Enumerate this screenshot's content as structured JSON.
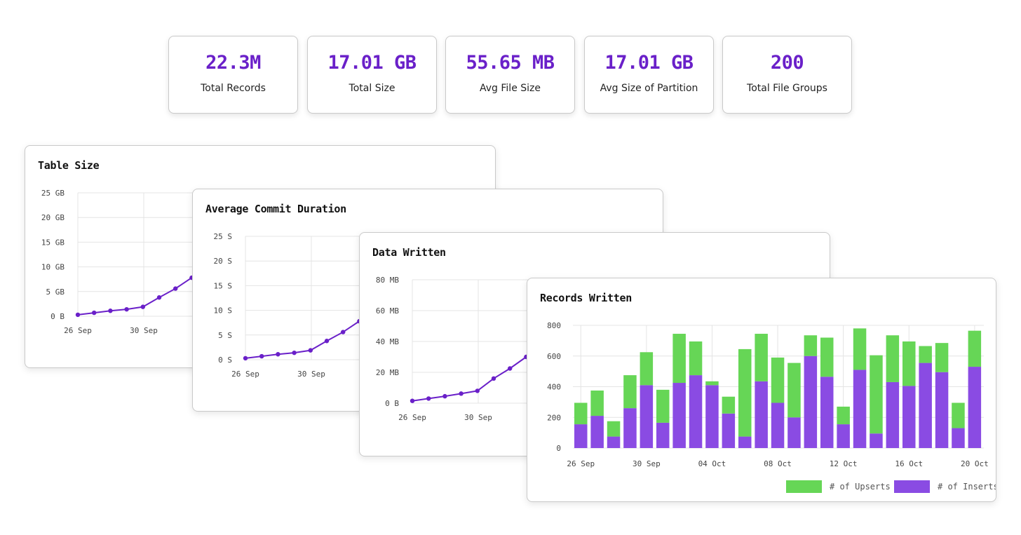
{
  "stats": [
    {
      "value": "22.3M",
      "label": "Total Records"
    },
    {
      "value": "17.01 GB",
      "label": "Total Size"
    },
    {
      "value": "55.65 MB",
      "label": "Avg File Size"
    },
    {
      "value": "17.01 GB",
      "label": "Avg Size of Partition"
    },
    {
      "value": "200",
      "label": "Total File Groups"
    }
  ],
  "colors": {
    "accent": "#6a20c9",
    "line": "#6a20c9",
    "upserts": "#66d656",
    "inserts": "#8a4be3"
  },
  "chart_data": [
    {
      "type": "line",
      "title": "Table Size",
      "y_ticks": [
        "0 B",
        "5 GB",
        "10 GB",
        "15 GB",
        "20 GB",
        "25 GB"
      ],
      "ylim": [
        0,
        25
      ],
      "x_ticks": [
        "26 Sep",
        "30 Sep"
      ],
      "grid": true,
      "series": [
        {
          "values": [
            0.3,
            0.7,
            1.1,
            1.4,
            1.9,
            3.8,
            5.6,
            7.8
          ]
        }
      ]
    },
    {
      "type": "line",
      "title": "Average Commit Duration",
      "y_ticks": [
        "0 S",
        "5 S",
        "10 S",
        "15 S",
        "20 S",
        "25 S"
      ],
      "ylim": [
        0,
        25
      ],
      "x_ticks": [
        "26 Sep",
        "30 Sep"
      ],
      "grid": true,
      "series": [
        {
          "values": [
            0.3,
            0.7,
            1.1,
            1.4,
            1.9,
            3.8,
            5.6,
            7.8
          ]
        }
      ]
    },
    {
      "type": "line",
      "title": "Data Written",
      "y_ticks": [
        "0 B",
        "20 MB",
        "40 MB",
        "60 MB",
        "80 MB"
      ],
      "ylim": [
        0,
        80
      ],
      "x_ticks": [
        "26 Sep",
        "30 Sep"
      ],
      "grid": true,
      "series": [
        {
          "values": [
            1.5,
            3,
            4.5,
            6.2,
            8,
            16,
            22.5,
            30
          ]
        }
      ]
    },
    {
      "type": "bar",
      "stacked": true,
      "title": "Records Written",
      "ylim": [
        0,
        800
      ],
      "y_ticks": [
        "0",
        "200",
        "400",
        "600",
        "800"
      ],
      "x_ticks": [
        "26 Sep",
        "30 Sep",
        "04 Oct",
        "08 Oct",
        "12 Oct",
        "16 Oct",
        "20 Oct"
      ],
      "grid": true,
      "legend_position": "bottom-right",
      "series": [
        {
          "name": "# of Inserts",
          "values": [
            155,
            210,
            75,
            260,
            410,
            165,
            425,
            475,
            410,
            225,
            75,
            435,
            295,
            200,
            600,
            465,
            155,
            510,
            95,
            430,
            405,
            555,
            495,
            130,
            530
          ]
        },
        {
          "name": "# of Upserts",
          "values": [
            140,
            165,
            100,
            215,
            215,
            215,
            320,
            220,
            25,
            110,
            570,
            310,
            295,
            355,
            135,
            255,
            115,
            270,
            510,
            305,
            290,
            110,
            190,
            165,
            235
          ]
        }
      ]
    }
  ]
}
